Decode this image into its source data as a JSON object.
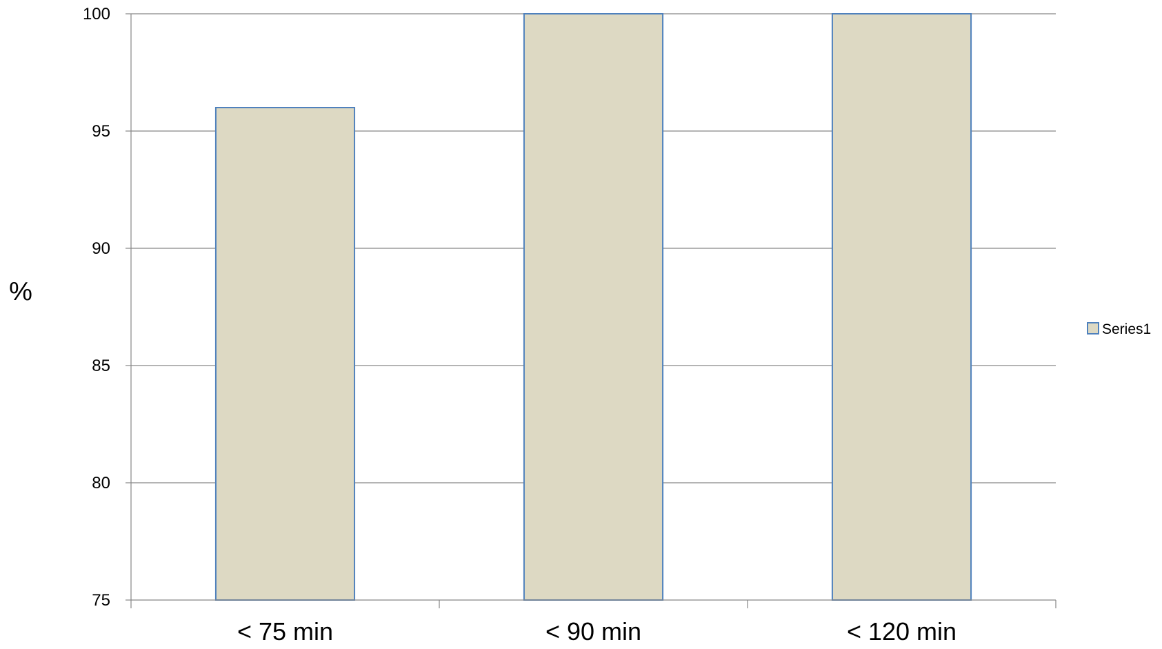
{
  "chart_data": {
    "type": "bar",
    "title": "",
    "xlabel": "",
    "ylabel": "%",
    "categories": [
      "< 75 min",
      "< 90 min",
      "< 120 min"
    ],
    "series": [
      {
        "name": "Series1",
        "values": [
          96,
          100,
          100
        ]
      }
    ],
    "ylim": [
      75,
      100
    ],
    "yticks": [
      75,
      80,
      85,
      90,
      95,
      100
    ],
    "grid": true,
    "legend": "right",
    "colors": {
      "bar_fill": "#ddd9c3",
      "bar_stroke": "#4f81bd",
      "grid": "#868686",
      "axis": "#868686"
    }
  }
}
